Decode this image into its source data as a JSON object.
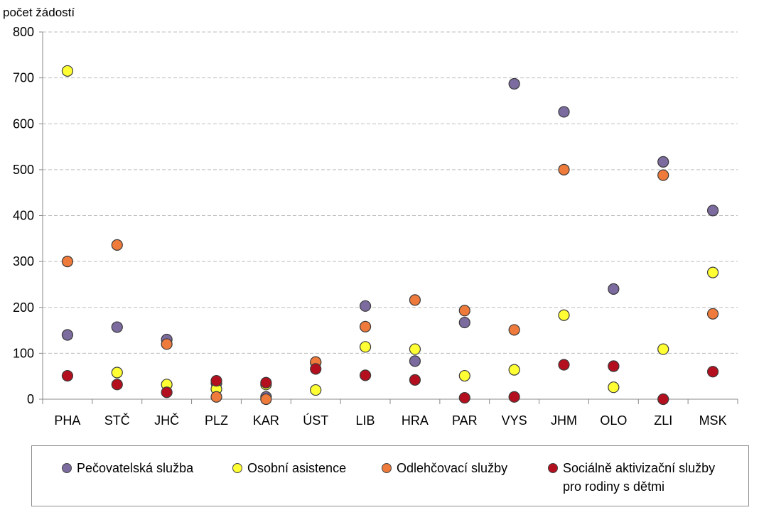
{
  "chart_data": {
    "type": "scatter",
    "ylabel": "počet žádostí",
    "xlabel": "",
    "title": "",
    "ylim": [
      0,
      800
    ],
    "yticks": [
      0,
      100,
      200,
      300,
      400,
      500,
      600,
      700,
      800
    ],
    "grid": "horizontal dashed",
    "legend_position": "bottom",
    "categories": [
      "PHA",
      "STČ",
      "JHČ",
      "PLZ",
      "KAR",
      "ÚST",
      "LIB",
      "HRA",
      "PAR",
      "VYS",
      "JHM",
      "OLO",
      "ZLI",
      "MSK"
    ],
    "series": [
      {
        "name": "Pečovatelská služba",
        "color": "#7b6b9e",
        "values": [
          140,
          157,
          130,
          35,
          5,
          80,
          203,
          83,
          167,
          687,
          626,
          240,
          517,
          411
        ]
      },
      {
        "name": "Osobní asistence",
        "color": "#ffff33",
        "values": [
          715,
          58,
          32,
          22,
          32,
          20,
          114,
          109,
          51,
          64,
          183,
          26,
          109,
          276
        ]
      },
      {
        "name": "Odlehčovací služby",
        "color": "#ee7a3b",
        "values": [
          300,
          336,
          120,
          5,
          0,
          81,
          158,
          216,
          193,
          151,
          500,
          72,
          488,
          186
        ]
      },
      {
        "name": "Sociálně aktivizační služby pro rodiny s dětmi",
        "legend_lines": [
          "Sociálně aktivizační služby",
          "pro rodiny s dětmi"
        ],
        "color": "#b40f1e",
        "values": [
          51,
          32,
          15,
          40,
          36,
          66,
          52,
          42,
          3,
          5,
          75,
          72,
          0,
          60
        ]
      }
    ]
  }
}
